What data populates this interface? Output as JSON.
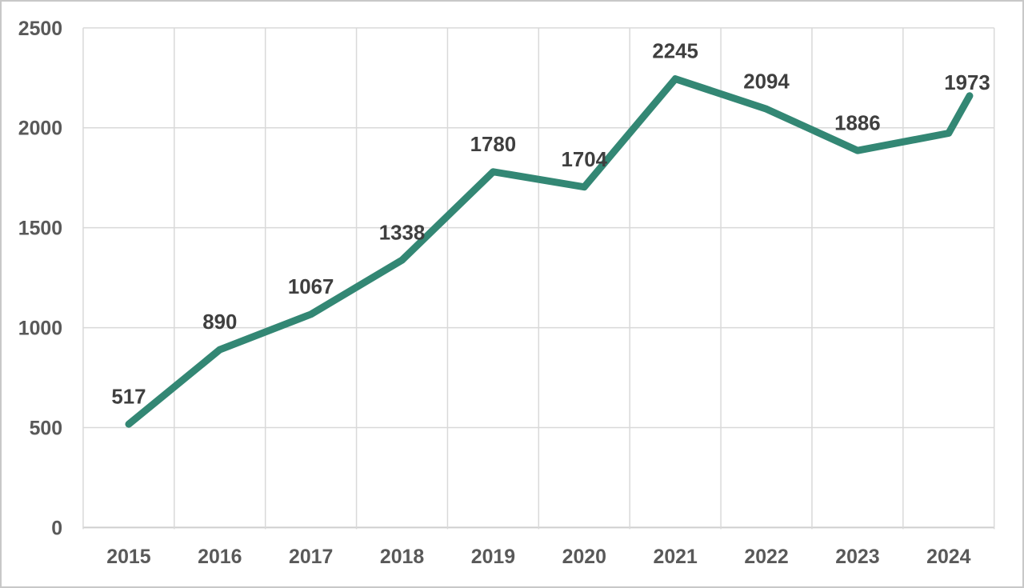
{
  "window": {
    "background_color": "#ffffff",
    "border_color": "#c8c8c8"
  },
  "chart_data": {
    "type": "line",
    "title": "",
    "xlabel": "",
    "ylabel": "",
    "categories": [
      "2015",
      "2016",
      "2017",
      "2018",
      "2019",
      "2020",
      "2021",
      "2022",
      "2023",
      "2024"
    ],
    "values": [
      517,
      890,
      1067,
      1338,
      1780,
      1704,
      2245,
      2094,
      1886,
      1973
    ],
    "data_labels": [
      "517",
      "890",
      "1067",
      "1338",
      "1780",
      "1704",
      "2245",
      "2094",
      "1886",
      "1973"
    ],
    "y_ticks": [
      0,
      500,
      1000,
      1500,
      2000,
      2500
    ],
    "ylim": [
      0,
      2500
    ],
    "grid": true,
    "legend_position": "none",
    "trailing_segment": {
      "end_value": 2160,
      "x_offset_fraction": 0.23,
      "note": "short unlabeled line continuation rising past the 2024 point; the 1973 label sits above its tip"
    },
    "colors": {
      "line": "#338774",
      "gridline": "#d9d9d9",
      "axis_line": "#cfcfcf",
      "axis_text": "#595959",
      "data_label_text": "#3f3f3f"
    }
  }
}
